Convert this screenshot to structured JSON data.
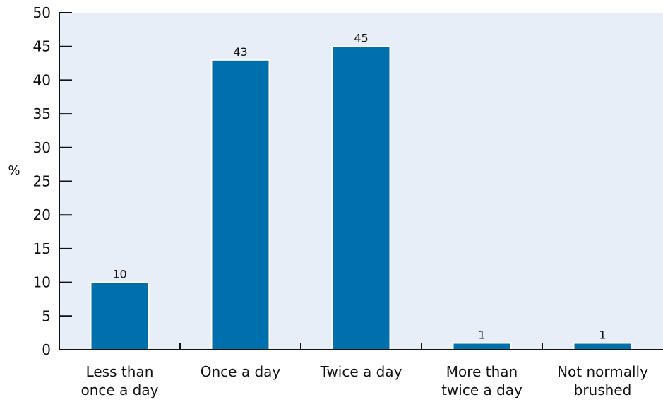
{
  "chart_data": {
    "type": "bar",
    "categories": [
      [
        "Less than",
        "once a day"
      ],
      [
        "Once a day"
      ],
      [
        "Twice a day"
      ],
      [
        "More than",
        "twice a day"
      ],
      [
        "Not normally",
        "brushed"
      ]
    ],
    "values": [
      10,
      43,
      45,
      1,
      1
    ],
    "data_labels": [
      "10",
      "43",
      "45",
      "1",
      "1"
    ],
    "ylabel": "%",
    "ylim": [
      0,
      50
    ],
    "yticks": [
      0,
      5,
      10,
      15,
      20,
      25,
      30,
      35,
      40,
      45,
      50
    ],
    "grid": false,
    "legend": "none",
    "colors": {
      "bar": "#0070ad",
      "bar_outline": "#ffffff",
      "plot_background": "#e8eef8",
      "axis": "#111111"
    }
  }
}
